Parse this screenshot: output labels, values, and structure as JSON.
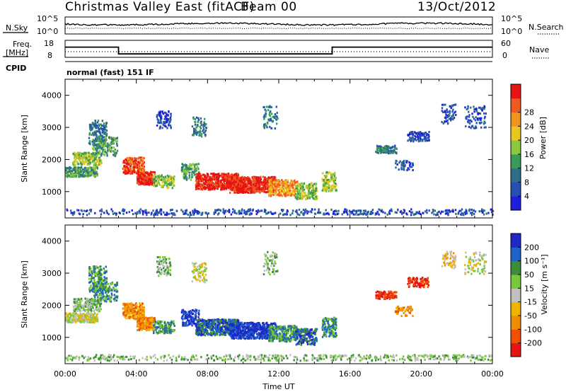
{
  "header": {
    "title": "Christmas Valley East (fitACF)",
    "beam_label": "Beam 00",
    "date": "13/Oct/2012"
  },
  "status_panel": {
    "nsky_label": "N.Sky",
    "nsky_ticks": [
      "10^5",
      "10^0"
    ],
    "nsearch_label": "N.Search",
    "nsearch_ticks": [
      "10^5",
      "10^0"
    ],
    "freq_label_1": "Freq.",
    "freq_label_2": "[MHz]",
    "freq_ticks": [
      "18",
      "8"
    ],
    "nave_label": "Nave",
    "nave_ticks": [
      "60",
      "0"
    ],
    "cpid_label": "CPID",
    "cpid_text": "normal (fast) 151 IF"
  },
  "chart_data": [
    {
      "type": "line",
      "panel": "noise",
      "series": [
        {
          "name": "N.Sky",
          "style": "solid"
        },
        {
          "name": "N.Search",
          "style": "dotted"
        }
      ],
      "ylim_log10": [
        0,
        5
      ]
    },
    {
      "type": "line",
      "panel": "frequency",
      "series": [
        {
          "name": "Freq.",
          "style": "solid",
          "x_hours": [
            0,
            3,
            3,
            15,
            15,
            24
          ],
          "y": [
            14,
            14,
            10,
            10,
            14,
            14
          ]
        },
        {
          "name": "Nave",
          "style": "dotted"
        }
      ],
      "ylim": [
        8,
        18
      ]
    },
    {
      "type": "heatmap",
      "panel": "power",
      "ylabel": "Slant Range [km]",
      "yticks": [
        "1000",
        "2000",
        "3000",
        "4000"
      ],
      "ylim": [
        180,
        4500
      ],
      "colorbar": {
        "label": "Power [dB]",
        "ticks": [
          "4",
          "8",
          "12",
          "16",
          "20",
          "24",
          "28"
        ],
        "colors": [
          "#1e1edc",
          "#2850b4",
          "#2e6e88",
          "#3a9a5a",
          "#8cc83c",
          "#e6c81e",
          "#f0961e",
          "#f05a1e",
          "#e61414"
        ]
      }
    },
    {
      "type": "heatmap",
      "panel": "velocity",
      "ylabel": "Slant Range [km]",
      "xlabel": "Time UT",
      "xticks": [
        "00:00",
        "04:00",
        "08:00",
        "12:00",
        "16:00",
        "20:00",
        "00:00"
      ],
      "yticks": [
        "1000",
        "2000",
        "3000",
        "4000"
      ],
      "ylim": [
        180,
        4500
      ],
      "colorbar": {
        "label": "Velocity [m s⁻¹]",
        "ticks": [
          "200",
          "100",
          "50",
          "15",
          "-15",
          "-50",
          "-100",
          "-200"
        ],
        "colors": [
          "#1e28c8",
          "#1e64c8",
          "#3c8c3c",
          "#78c83c",
          "#c0c0c0",
          "#f0b400",
          "#f08c00",
          "#f05000",
          "#e61414"
        ]
      }
    }
  ]
}
